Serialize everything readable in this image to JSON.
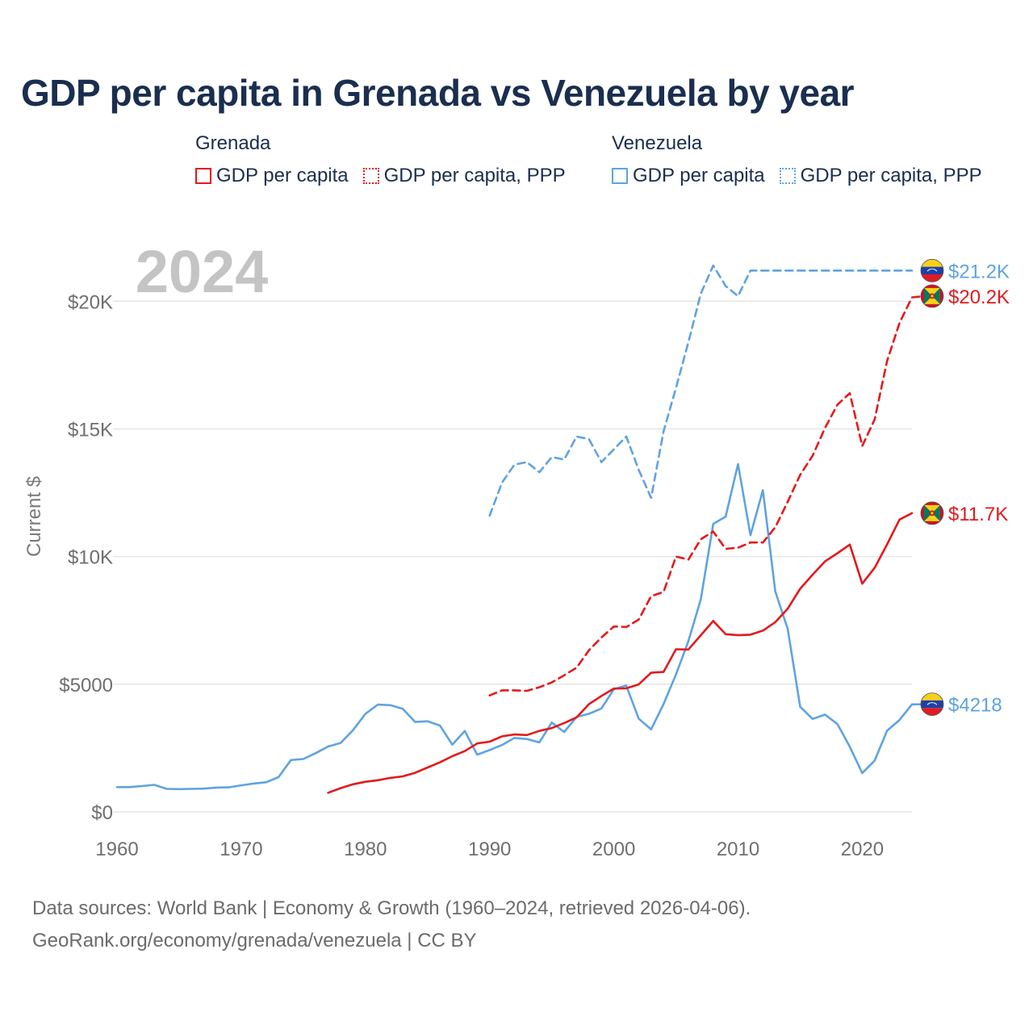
{
  "title": "GDP per capita in Grenada vs Venezuela by year",
  "legend": {
    "groups": [
      {
        "name": "Grenada",
        "color": "#e31a1c",
        "items": [
          {
            "label": "GDP per capita",
            "style": "solid"
          },
          {
            "label": "GDP per capita, PPP",
            "style": "dotted"
          }
        ]
      },
      {
        "name": "Venezuela",
        "color": "#5fa3e0",
        "items": [
          {
            "label": "GDP per capita",
            "style": "solid"
          },
          {
            "label": "GDP per capita, PPP",
            "style": "dotted"
          }
        ]
      }
    ]
  },
  "footer": {
    "line1": "Data sources: World Bank | Economy & Growth (1960–2024, retrieved 2026-04-06).",
    "line2": "GeoRank.org/economy/grenada/venezuela | CC BY"
  },
  "chart_data": {
    "type": "line",
    "title": "GDP per capita in Grenada vs Venezuela by year",
    "ylabel": "Current $",
    "xlabel": "",
    "year_watermark": "2024",
    "xlim": [
      1960,
      2024
    ],
    "ylim": [
      0,
      22000
    ],
    "x_ticks": [
      1960,
      1970,
      1980,
      1990,
      2000,
      2010,
      2020
    ],
    "x_tick_labels": [
      "1960",
      "1970",
      "1980",
      "1990",
      "2000",
      "2010",
      "2020"
    ],
    "y_ticks": [
      0,
      5000,
      10000,
      15000,
      20000
    ],
    "y_tick_labels": [
      "$0",
      "$5000",
      "$10K",
      "$15K",
      "$20K"
    ],
    "series": [
      {
        "name": "Venezuela GDP per capita",
        "country": "Venezuela",
        "color": "#5fa3e0",
        "dash": "solid",
        "end_label": "$4218",
        "flag": "venezuela",
        "start_year": 1960,
        "values": [
          970,
          970,
          1010,
          1060,
          900,
          890,
          900,
          910,
          950,
          960,
          1040,
          1110,
          1160,
          1360,
          2030,
          2070,
          2300,
          2560,
          2700,
          3200,
          3840,
          4200,
          4180,
          4040,
          3520,
          3550,
          3380,
          2630,
          3170,
          2240,
          2420,
          2620,
          2900,
          2850,
          2720,
          3500,
          3130,
          3720,
          3840,
          4050,
          4800,
          4950,
          3650,
          3230,
          4220,
          5380,
          6690,
          8330,
          11280,
          11560,
          13620,
          10840,
          12600,
          8630,
          7160,
          4120,
          3640,
          3810,
          3440,
          2550,
          1520,
          2010,
          3180,
          3600,
          4210,
          4218
        ]
      },
      {
        "name": "Venezuela GDP per capita, PPP",
        "country": "Venezuela",
        "color": "#5fa3e0",
        "dash": "dashed",
        "end_label": "$21.2K",
        "flag": "venezuela",
        "start_year": 1990,
        "values": [
          11600,
          12900,
          13600,
          13700,
          13300,
          13900,
          13800,
          14700,
          14600,
          13700,
          14200,
          14700,
          13400,
          12300,
          14900,
          16600,
          18400,
          20300,
          21400,
          20600,
          20200,
          21200,
          21200,
          21200,
          21200,
          21200,
          21200,
          21200,
          21200,
          21200,
          21200,
          21200,
          21200,
          21200,
          21200
        ]
      },
      {
        "name": "Grenada GDP per capita",
        "country": "Grenada",
        "color": "#e31a1c",
        "dash": "solid",
        "end_label": "$11.7K",
        "flag": "grenada",
        "start_year": 1977,
        "values": [
          750,
          930,
          1080,
          1180,
          1240,
          1330,
          1390,
          1530,
          1740,
          1940,
          2180,
          2380,
          2680,
          2750,
          2960,
          3030,
          3010,
          3170,
          3280,
          3480,
          3700,
          4220,
          4540,
          4830,
          4840,
          4990,
          5450,
          5480,
          6370,
          6360,
          6920,
          7480,
          6960,
          6920,
          6940,
          7100,
          7430,
          7960,
          8740,
          9290,
          9810,
          10130,
          10470,
          8940,
          9560,
          10480,
          11450,
          11700
        ]
      },
      {
        "name": "Grenada GDP per capita, PPP",
        "country": "Grenada",
        "color": "#e31a1c",
        "dash": "dashed",
        "end_label": "$20.2K",
        "flag": "grenada",
        "start_year": 1990,
        "values": [
          4560,
          4760,
          4760,
          4740,
          4880,
          5070,
          5350,
          5650,
          6330,
          6830,
          7260,
          7240,
          7530,
          8450,
          8610,
          10000,
          9880,
          10680,
          10980,
          10300,
          10350,
          10550,
          10550,
          11150,
          12150,
          13200,
          13950,
          15040,
          15950,
          16400,
          14330,
          15370,
          17660,
          19150,
          20150,
          20200
        ]
      }
    ]
  }
}
